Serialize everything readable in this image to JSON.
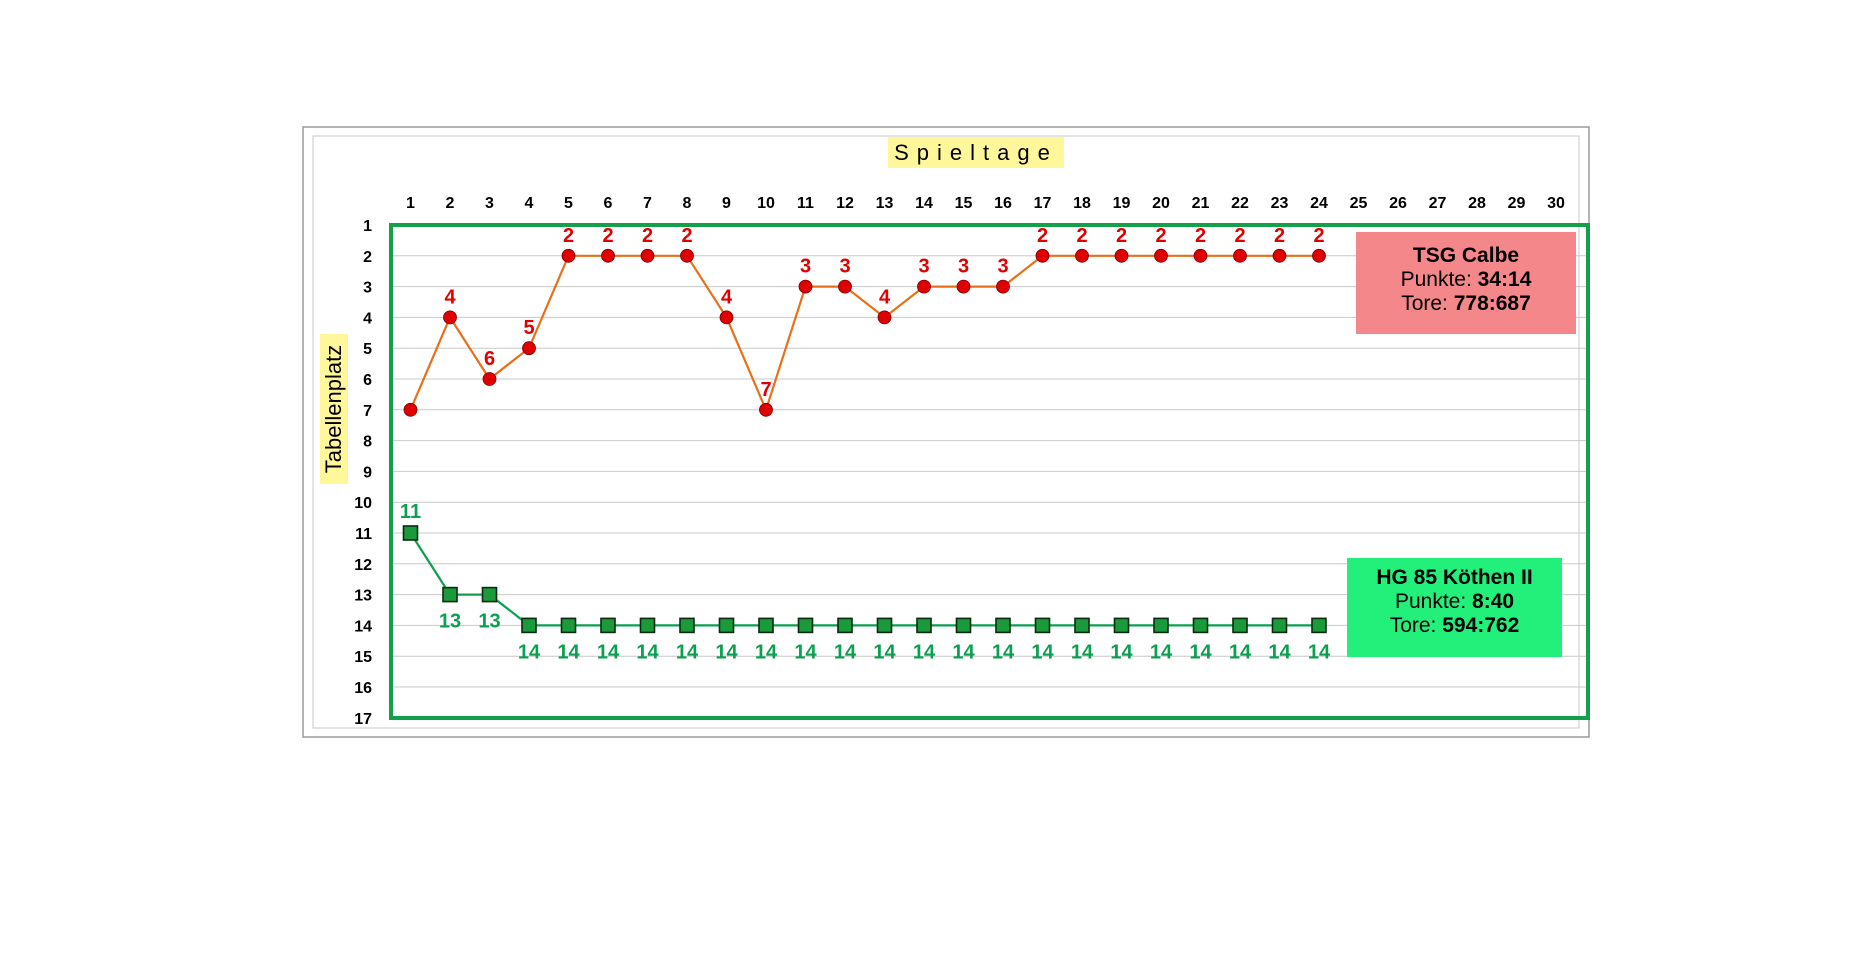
{
  "chart_data": {
    "type": "line",
    "xlabel": "Spieltage",
    "ylabel": "Tabellenplatz",
    "x_ticks": [
      1,
      2,
      3,
      4,
      5,
      6,
      7,
      8,
      9,
      10,
      11,
      12,
      13,
      14,
      15,
      16,
      17,
      18,
      19,
      20,
      21,
      22,
      23,
      24,
      25,
      26,
      27,
      28,
      29,
      30
    ],
    "y_ticks": [
      1,
      2,
      3,
      4,
      5,
      6,
      7,
      8,
      9,
      10,
      11,
      12,
      13,
      14,
      15,
      16,
      17
    ],
    "ylim": [
      1,
      17
    ],
    "y_inverted": true,
    "grid": true,
    "series": [
      {
        "name": "TSG Calbe",
        "color": "#e8701a",
        "marker_color": "#e00000",
        "label_color": "#e00000",
        "marker": "circle",
        "x": [
          1,
          2,
          3,
          4,
          5,
          6,
          7,
          8,
          9,
          10,
          11,
          12,
          13,
          14,
          15,
          16,
          17,
          18,
          19,
          20,
          21,
          22,
          23,
          24
        ],
        "values": [
          7,
          4,
          6,
          5,
          2,
          2,
          2,
          2,
          4,
          7,
          3,
          3,
          4,
          3,
          3,
          3,
          2,
          2,
          2,
          2,
          2,
          2,
          2,
          2
        ],
        "labels": [
          "",
          "4",
          "6",
          "5",
          "2",
          "2",
          "2",
          "2",
          "4",
          "7",
          "3",
          "3",
          "4",
          "3",
          "3",
          "3",
          "2",
          "2",
          "2",
          "2",
          "2",
          "2",
          "2",
          "2"
        ]
      },
      {
        "name": "HG 85 Köthen II",
        "color": "#0aa050",
        "marker_color": "#1a9a3a",
        "label_color": "#0aa050",
        "marker": "square",
        "x": [
          1,
          2,
          3,
          4,
          5,
          6,
          7,
          8,
          9,
          10,
          11,
          12,
          13,
          14,
          15,
          16,
          17,
          18,
          19,
          20,
          21,
          22,
          23,
          24
        ],
        "values": [
          11,
          13,
          13,
          14,
          14,
          14,
          14,
          14,
          14,
          14,
          14,
          14,
          14,
          14,
          14,
          14,
          14,
          14,
          14,
          14,
          14,
          14,
          14,
          14
        ],
        "labels": [
          "11",
          "13",
          "13",
          "14",
          "14",
          "14",
          "14",
          "14",
          "14",
          "14",
          "14",
          "14",
          "14",
          "14",
          "14",
          "14",
          "14",
          "14",
          "14",
          "14",
          "14",
          "14",
          "14",
          "14"
        ]
      }
    ]
  },
  "info_boxes": {
    "red": {
      "name": "TSG Calbe",
      "points_label": "Punkte:",
      "points": "34:14",
      "goals_label": "Tore:",
      "goals": "778:687",
      "background": "#f4878a"
    },
    "green": {
      "name": "HG 85 Köthen II",
      "points_label": "Punkte:",
      "points": "8:40",
      "goals_label": "Tore:",
      "goals": "594:762",
      "background": "#22f07a"
    }
  }
}
